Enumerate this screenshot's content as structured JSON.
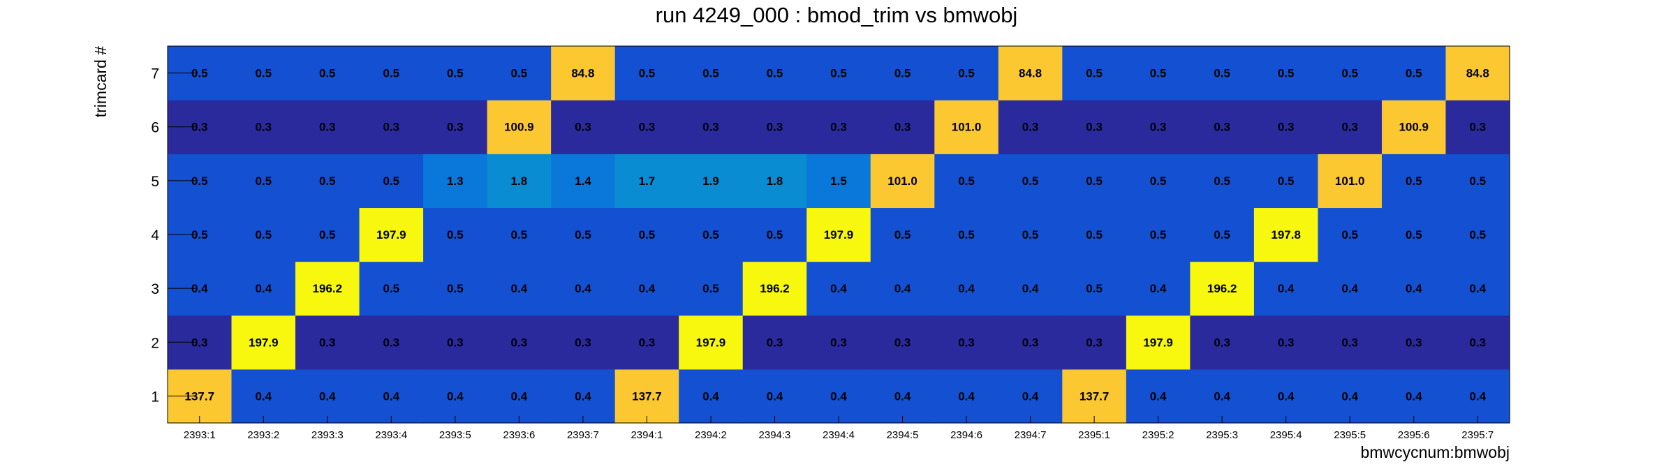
{
  "chart_data": {
    "type": "heatmap",
    "title": "run 4249_000 : bmod_trim vs bmwobj",
    "xlabel": "bmwcycnum:bmwobj",
    "ylabel": "trimcard #",
    "x_categories": [
      "2393:1",
      "2393:2",
      "2393:3",
      "2393:4",
      "2393:5",
      "2393:6",
      "2393:7",
      "2394:1",
      "2394:2",
      "2394:3",
      "2394:4",
      "2394:5",
      "2394:6",
      "2394:7",
      "2395:1",
      "2395:2",
      "2395:3",
      "2395:4",
      "2395:5",
      "2395:6",
      "2395:7"
    ],
    "y_categories": [
      "1",
      "2",
      "3",
      "4",
      "5",
      "6",
      "7"
    ],
    "values": [
      [
        137.7,
        0.4,
        0.4,
        0.4,
        0.4,
        0.4,
        0.4,
        137.7,
        0.4,
        0.4,
        0.4,
        0.4,
        0.4,
        0.4,
        137.7,
        0.4,
        0.4,
        0.4,
        0.4,
        0.4,
        0.4
      ],
      [
        0.3,
        197.9,
        0.3,
        0.3,
        0.3,
        0.3,
        0.3,
        0.3,
        197.9,
        0.3,
        0.3,
        0.3,
        0.3,
        0.3,
        0.3,
        197.9,
        0.3,
        0.3,
        0.3,
        0.3,
        0.3
      ],
      [
        0.4,
        0.4,
        196.2,
        0.5,
        0.5,
        0.4,
        0.4,
        0.4,
        0.5,
        196.2,
        0.4,
        0.4,
        0.4,
        0.4,
        0.5,
        0.4,
        196.2,
        0.4,
        0.4,
        0.4,
        0.4
      ],
      [
        0.5,
        0.5,
        0.5,
        197.9,
        0.5,
        0.5,
        0.5,
        0.5,
        0.5,
        0.5,
        197.9,
        0.5,
        0.5,
        0.5,
        0.5,
        0.5,
        0.5,
        197.8,
        0.5,
        0.5,
        0.5
      ],
      [
        0.5,
        0.5,
        0.5,
        0.5,
        1.3,
        1.8,
        1.4,
        1.7,
        1.9,
        1.8,
        1.5,
        101.0,
        0.5,
        0.5,
        0.5,
        0.5,
        0.5,
        0.5,
        101.0,
        0.5,
        0.5
      ],
      [
        0.3,
        0.3,
        0.3,
        0.3,
        0.3,
        100.9,
        0.3,
        0.3,
        0.3,
        0.3,
        0.3,
        0.3,
        101.0,
        0.3,
        0.3,
        0.3,
        0.3,
        0.3,
        0.3,
        100.9,
        0.3
      ],
      [
        0.5,
        0.5,
        0.5,
        0.5,
        0.5,
        0.5,
        84.8,
        0.5,
        0.5,
        0.5,
        0.5,
        0.5,
        0.5,
        84.8,
        0.5,
        0.5,
        0.5,
        0.5,
        0.5,
        0.5,
        84.8
      ]
    ],
    "value_format_decimals": 1,
    "palette": "kBird",
    "colors": {
      "low": "#2a2a9c",
      "near_low": "#1450d2",
      "mid_low": "#0a78da",
      "mid": "#0a8cd2",
      "orange": "#fbc832",
      "high": "#f8f80e"
    },
    "grid": false,
    "legend": "none"
  }
}
